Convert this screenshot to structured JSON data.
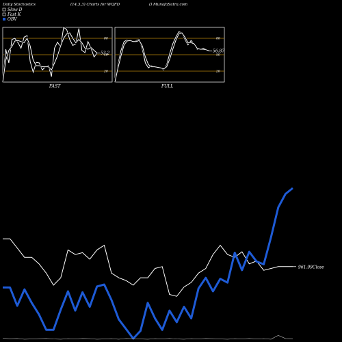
{
  "header": {
    "left": "Daily Stochastics",
    "center": "(14,3,3) Charts for WQFD",
    "right": "() MunafaSutra.com"
  },
  "legend": [
    {
      "label": "Slow  D",
      "color": "#ffffff",
      "swatch": "outline"
    },
    {
      "label": "Fast K",
      "color": "#ffffff",
      "swatch": "outline"
    },
    {
      "label": "OBV",
      "color": "#1e5bd6",
      "swatch": "filled"
    }
  ],
  "colors": {
    "background": "#000000",
    "line": "#ffffff",
    "obv": "#1e5bd6",
    "gridline": "#b8860b"
  },
  "chart_data": [
    {
      "type": "line",
      "name": "fast-stochastics-panel",
      "xlabel": "FAST",
      "yticks": [
        80,
        50,
        20
      ],
      "ylim": [
        0,
        100
      ],
      "last_value_label": "53.2",
      "series": [
        {
          "role": "k",
          "values": [
            0,
            60,
            35,
            78,
            80,
            72,
            62,
            82,
            85,
            38,
            18,
            36,
            35,
            22,
            28,
            30,
            10,
            62,
            73,
            64,
            100,
            96,
            78,
            67,
            70,
            98,
            58,
            54,
            74,
            62,
            46,
            53
          ]
        },
        {
          "role": "d",
          "values": [
            0,
            40,
            58,
            65,
            75,
            76,
            74,
            72,
            80,
            66,
            40,
            30,
            30,
            28,
            28,
            28,
            22,
            35,
            48,
            66,
            80,
            88,
            90,
            80,
            72,
            78,
            72,
            62,
            60,
            63,
            58,
            53
          ]
        }
      ]
    },
    {
      "type": "line",
      "name": "full-stochastics-panel",
      "xlabel": "FULL",
      "yticks": [
        80,
        50,
        20
      ],
      "ylim": [
        0,
        100
      ],
      "last_value_label": "56.87",
      "series": [
        {
          "role": "k",
          "values": [
            0,
            32,
            58,
            74,
            77,
            75,
            73,
            76,
            78,
            60,
            35,
            26,
            30,
            28,
            26,
            26,
            22,
            32,
            52,
            70,
            82,
            92,
            90,
            78,
            68,
            76,
            70,
            60,
            60,
            62,
            60,
            57
          ]
        },
        {
          "role": "d",
          "values": [
            0,
            26,
            48,
            68,
            75,
            76,
            74,
            74,
            76,
            66,
            46,
            32,
            28,
            28,
            27,
            26,
            24,
            28,
            42,
            60,
            76,
            88,
            90,
            82,
            72,
            72,
            70,
            62,
            60,
            60,
            59,
            57
          ]
        }
      ]
    },
    {
      "type": "line",
      "name": "price-obv-panel",
      "last_value_label": "961.99Close",
      "series": [
        {
          "name": "OBV",
          "values": [
            56,
            56,
            18,
            52,
            24,
            0,
            -32,
            -32,
            10,
            48,
            8,
            46,
            16,
            58,
            62,
            30,
            -10,
            -30,
            -50,
            -34,
            24,
            -8,
            -32,
            8,
            -16,
            16,
            -8,
            54,
            76,
            48,
            74,
            66,
            128,
            92,
            130,
            110,
            104,
            160,
            222,
            250,
            262
          ]
        },
        {
          "name": "Close",
          "values": [
            992,
            992,
            982,
            972,
            972,
            965,
            955,
            942,
            950,
            980,
            975,
            977,
            970,
            980,
            985,
            955,
            950,
            947,
            942,
            950,
            950,
            960,
            962,
            932,
            930,
            940,
            945,
            955,
            960,
            975,
            985,
            975,
            972,
            978,
            965,
            968,
            958,
            960,
            962,
            962,
            962
          ]
        },
        {
          "name": "Volume",
          "values": [
            10,
            8,
            9,
            6,
            7,
            8,
            9,
            7,
            6,
            8,
            7,
            9,
            8,
            6,
            7,
            8,
            6,
            9,
            8,
            7,
            6,
            8,
            7,
            9,
            7,
            6,
            8,
            7,
            9,
            8,
            7,
            6,
            8,
            7,
            9,
            7,
            8,
            6,
            22,
            9,
            8
          ]
        }
      ]
    }
  ]
}
